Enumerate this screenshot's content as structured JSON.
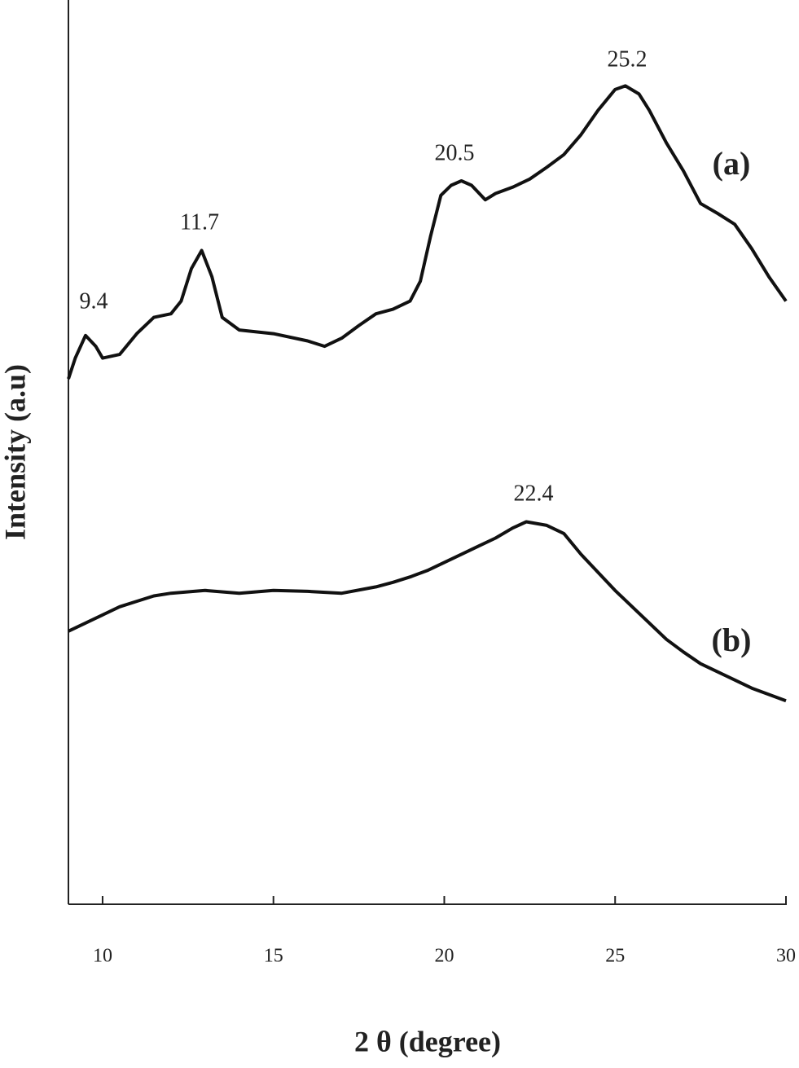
{
  "chart_data": {
    "type": "line",
    "x_label": "2 θ (degree)",
    "y_label": "Intensity (a.u)",
    "xlim": [
      9,
      30
    ],
    "xticks": [
      10,
      15,
      20,
      25,
      30
    ],
    "ylim": [
      0,
      100
    ],
    "annotations": [
      "9.4",
      "11.7",
      "20.5",
      "25.2",
      "22.4"
    ],
    "series": [
      {
        "name": "(a)",
        "color": "#111111",
        "x": [
          9.0,
          9.2,
          9.5,
          9.8,
          10.0,
          10.5,
          11.0,
          11.5,
          12.0,
          12.3,
          12.6,
          12.9,
          13.2,
          13.5,
          14.0,
          15.0,
          16.0,
          16.5,
          17.0,
          17.5,
          18.0,
          18.5,
          19.0,
          19.3,
          19.6,
          19.9,
          20.2,
          20.5,
          20.8,
          21.2,
          21.5,
          22.0,
          22.5,
          23.0,
          23.5,
          24.0,
          24.5,
          25.0,
          25.3,
          25.7,
          26.0,
          26.5,
          27.0,
          27.5,
          28.0,
          28.5,
          29.0,
          29.5,
          30.0
        ],
        "values": [
          58.1,
          60.4,
          62.9,
          61.7,
          60.4,
          60.8,
          63.1,
          64.9,
          65.3,
          66.7,
          70.3,
          72.3,
          69.4,
          64.9,
          63.5,
          63.1,
          62.3,
          61.7,
          62.6,
          64.0,
          65.3,
          65.8,
          66.7,
          68.9,
          73.9,
          78.4,
          79.5,
          80.0,
          79.5,
          77.9,
          78.6,
          79.3,
          80.2,
          81.5,
          82.9,
          85.1,
          87.8,
          90.1,
          90.5,
          89.6,
          87.8,
          84.2,
          81.1,
          77.5,
          76.4,
          75.2,
          72.5,
          69.4,
          66.7
        ]
      },
      {
        "name": "(b)",
        "color": "#111111",
        "x": [
          9.0,
          9.5,
          10.0,
          10.5,
          11.0,
          11.5,
          12.0,
          13.0,
          14.0,
          15.0,
          16.0,
          17.0,
          18.0,
          18.5,
          19.0,
          19.5,
          20.0,
          20.5,
          21.0,
          21.5,
          22.0,
          22.4,
          23.0,
          23.5,
          24.0,
          24.5,
          25.0,
          25.5,
          26.0,
          26.5,
          27.0,
          27.5,
          28.0,
          28.5,
          29.0,
          29.5,
          30.0
        ],
        "values": [
          30.2,
          31.1,
          32.0,
          32.9,
          33.5,
          34.1,
          34.4,
          34.7,
          34.4,
          34.7,
          34.6,
          34.4,
          35.1,
          35.6,
          36.2,
          36.9,
          37.8,
          38.7,
          39.6,
          40.5,
          41.6,
          42.3,
          41.9,
          41.0,
          38.7,
          36.7,
          34.7,
          32.9,
          31.1,
          29.3,
          27.9,
          26.6,
          25.7,
          24.8,
          23.9,
          23.2,
          22.5
        ]
      }
    ]
  }
}
